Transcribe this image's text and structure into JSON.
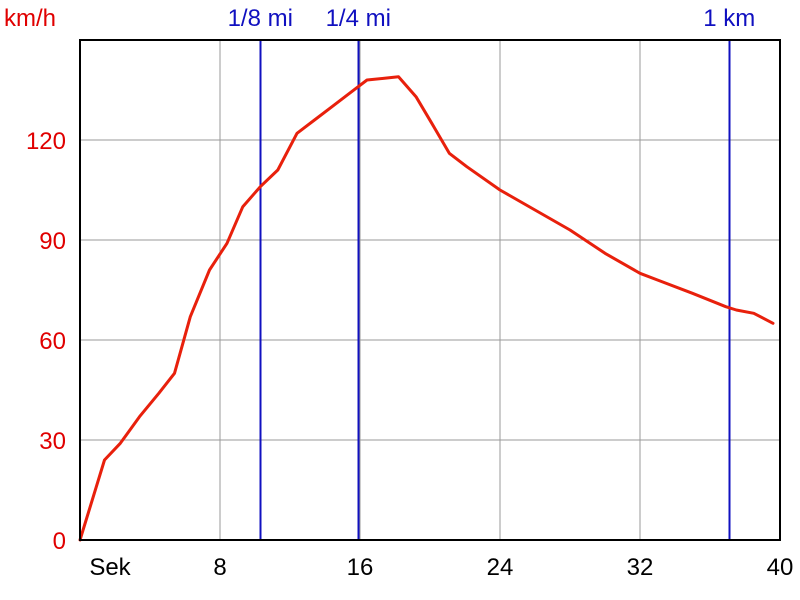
{
  "chart_data": {
    "type": "line",
    "ylabel": "km/h",
    "xlabel": "Sek",
    "xlim": [
      0,
      40
    ],
    "ylim": [
      0,
      150
    ],
    "x_ticks": [
      8,
      16,
      24,
      32,
      40
    ],
    "y_ticks": [
      0,
      30,
      60,
      90,
      120
    ],
    "grid": true,
    "colors": {
      "series": "#e8200c",
      "markers": "#1010c0",
      "y_axis_text": "#e00000"
    },
    "series": [
      {
        "x": [
          0,
          1.4,
          2.3,
          3.4,
          4.5,
          5.4,
          6.3,
          7.4,
          8.4,
          9.3,
          10.3,
          11.3,
          12.4,
          13.4,
          14.4,
          15.4,
          16.4,
          17.4,
          18.2,
          19.2,
          20.1,
          21.1,
          22.1,
          24.0,
          26.0,
          28.0,
          30.0,
          32.0,
          33.0,
          35.0,
          36.9,
          37.5,
          38.5,
          39.6
        ],
        "y": [
          0,
          24,
          29,
          37,
          44,
          50,
          67,
          81,
          89,
          100,
          106,
          111,
          122,
          126,
          130,
          134,
          138,
          138.5,
          139,
          133,
          125,
          116,
          112,
          105,
          99,
          93,
          86,
          80,
          78,
          74,
          70,
          69,
          68,
          65
        ]
      }
    ],
    "markers": [
      {
        "label": "1/8 mi",
        "x": 10.3
      },
      {
        "label": "1/4 mi",
        "x": 15.9
      },
      {
        "label": "1 km",
        "x": 37.1
      }
    ]
  }
}
